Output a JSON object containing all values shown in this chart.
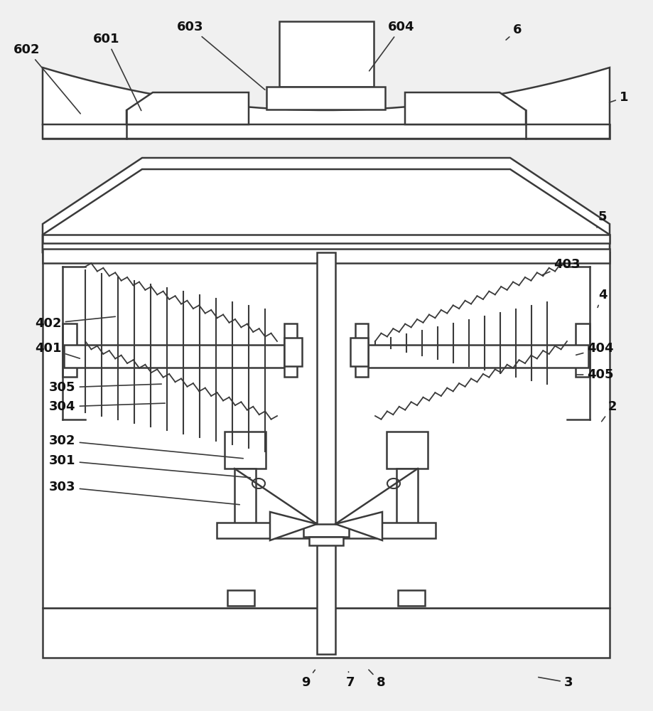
{
  "bg_color": "#f0f0f0",
  "line_color": "#3a3a3a",
  "line_width": 1.8,
  "fill_color": "#ffffff",
  "annotations": [
    [
      "1",
      855,
      145,
      878,
      137
    ],
    [
      "2",
      845,
      595,
      862,
      572
    ],
    [
      "3",
      755,
      952,
      800,
      960
    ],
    [
      "4",
      840,
      435,
      848,
      415
    ],
    [
      "5",
      840,
      320,
      848,
      305
    ],
    [
      "6",
      710,
      58,
      728,
      42
    ],
    [
      "7",
      490,
      942,
      493,
      960
    ],
    [
      "8",
      517,
      940,
      536,
      960
    ],
    [
      "9",
      445,
      940,
      430,
      960
    ],
    [
      "301",
      355,
      672,
      88,
      648
    ],
    [
      "302",
      345,
      645,
      88,
      620
    ],
    [
      "303",
      340,
      710,
      88,
      685
    ],
    [
      "304",
      235,
      567,
      88,
      572
    ],
    [
      "305",
      230,
      540,
      88,
      545
    ],
    [
      "401",
      115,
      505,
      68,
      490
    ],
    [
      "402",
      165,
      445,
      68,
      455
    ],
    [
      "403",
      760,
      388,
      798,
      372
    ],
    [
      "404",
      808,
      500,
      845,
      490
    ],
    [
      "405",
      808,
      527,
      845,
      527
    ],
    [
      "601",
      200,
      158,
      150,
      55
    ],
    [
      "602",
      115,
      162,
      38,
      70
    ],
    [
      "603",
      375,
      128,
      268,
      38
    ],
    [
      "604",
      518,
      102,
      565,
      38
    ]
  ]
}
